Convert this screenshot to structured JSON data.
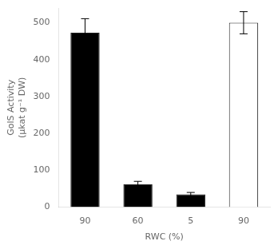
{
  "chart_data": {
    "type": "bar",
    "categories": [
      "90",
      "60",
      "5",
      "90"
    ],
    "values": [
      473,
      62,
      35,
      500
    ],
    "errors": [
      38,
      8,
      5,
      30
    ],
    "colors": [
      "#000000",
      "#000000",
      "#000000",
      "#ffffff"
    ],
    "xlabel": "RWC (%)",
    "ylabel": [
      "GolS Activity",
      "(μkat g⁻¹ DW)"
    ],
    "ylim": [
      0,
      540
    ],
    "yticks": [
      0,
      100,
      200,
      300,
      400,
      500
    ],
    "grid": false
  }
}
